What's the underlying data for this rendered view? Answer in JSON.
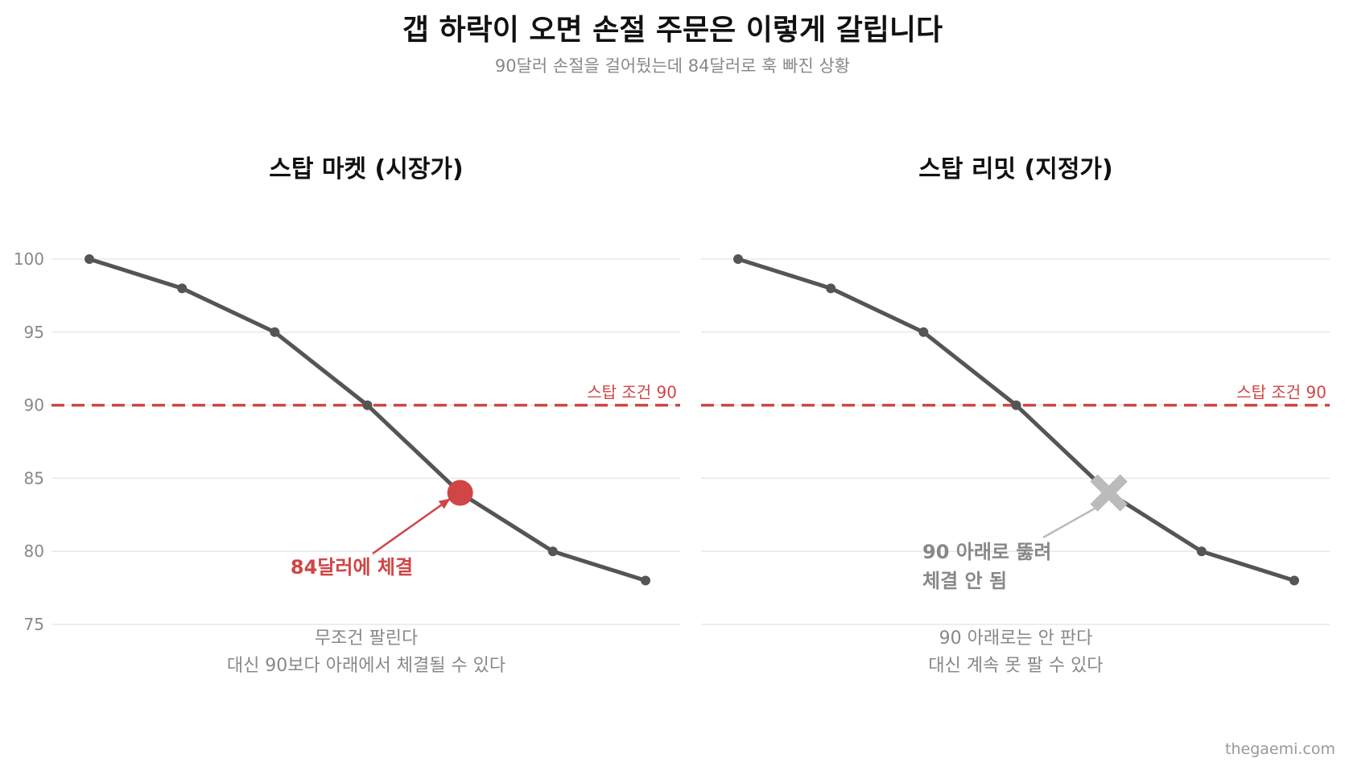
{
  "title": "갭 하락이 오면 손절 주문은 이렇게 갈립니다",
  "subtitle": "90달러 손절을 걸어뒀는데 84달러로 훅 빠진 상황",
  "watermark": "thegaemi.com",
  "colors": {
    "line": "#555555",
    "stop": "#d04545",
    "fail": "#bbbbbb",
    "grid": "#e8e8e8",
    "axis_text": "#888888"
  },
  "chart_data": [
    {
      "type": "line",
      "title": "스탑 마켓 (시장가)",
      "x": [
        1,
        2,
        3,
        4,
        5,
        6,
        7
      ],
      "series": [
        {
          "values": [
            100,
            98,
            95,
            90,
            84,
            80,
            78
          ]
        }
      ],
      "ylim": [
        75,
        100
      ],
      "yticks": [
        100,
        95,
        90,
        85,
        80,
        75
      ],
      "grid": true,
      "stop_line": {
        "value": 90,
        "label": "스탑 조건 90"
      },
      "execution": {
        "x": 5,
        "y": 84,
        "marker": "filled-circle",
        "label": "84달러에 체결"
      },
      "caption": [
        "무조건 팔린다",
        "대신 90보다 아래에서 체결될 수 있다"
      ]
    },
    {
      "type": "line",
      "title": "스탑 리밋 (지정가)",
      "x": [
        1,
        2,
        3,
        4,
        5,
        6,
        7
      ],
      "series": [
        {
          "values": [
            100,
            98,
            95,
            90,
            84,
            80,
            78
          ]
        }
      ],
      "ylim": [
        75,
        100
      ],
      "yticks": [
        100,
        95,
        90,
        85,
        80,
        75
      ],
      "grid": true,
      "stop_line": {
        "value": 90,
        "label": "스탑 조건 90"
      },
      "execution": {
        "x": 5,
        "y": 84,
        "marker": "cross",
        "label": [
          "90 아래로 뚫려",
          "체결 안 됨"
        ]
      },
      "caption": [
        "90 아래로는 안 판다",
        "대신 계속 못 팔 수 있다"
      ]
    }
  ]
}
